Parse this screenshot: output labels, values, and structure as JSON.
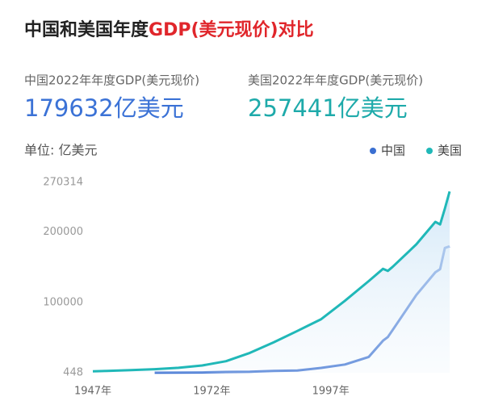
{
  "chart_data": {
    "type": "line",
    "title_parts": [
      {
        "text": "中国和美国年度",
        "color": "#222222"
      },
      {
        "text": "GDP(美元现价)对比",
        "color": "#e0262b"
      }
    ],
    "stats": [
      {
        "label": "中国2022年年度GDP(美元现价)",
        "value": "179632亿美元",
        "color": "#3b72d6"
      },
      {
        "label": "美国2022年年度GDP(美元现价)",
        "value": "257441亿美元",
        "color": "#1eaaaa"
      }
    ],
    "unit_label": "单位: 亿美元",
    "x": [
      1947,
      1950,
      1955,
      1960,
      1965,
      1970,
      1975,
      1980,
      1985,
      1990,
      1995,
      2000,
      2005,
      2008,
      2009,
      2010,
      2015,
      2019,
      2020,
      2021,
      2022
    ],
    "series": [
      {
        "name": "中国",
        "color": "#3a6fd1",
        "values": [
          null,
          null,
          null,
          597,
          704,
          926,
          1630,
          1911,
          3094,
          3609,
          7345,
          12110,
          22860,
          45940,
          51020,
          60870,
          110620,
          142800,
          147230,
          177340,
          179632
        ]
      },
      {
        "name": "美国",
        "color": "#20b8b8",
        "values": [
          2500,
          3000,
          4260,
          5430,
          7440,
          10730,
          16840,
          28570,
          43390,
          59630,
          76400,
          102500,
          130370,
          147690,
          144780,
          150490,
          182380,
          214330,
          210600,
          233150,
          257441
        ]
      }
    ],
    "xlim": [
      1947,
      2022
    ],
    "xticks": [
      {
        "value": 1947,
        "label": "1947年"
      },
      {
        "value": 1972,
        "label": "1972年"
      },
      {
        "value": 1997,
        "label": "1997年"
      }
    ],
    "ylim": [
      448,
      270314
    ],
    "yticks": [
      448,
      100000,
      200000,
      270314
    ],
    "area_under": "美国",
    "legend": "top-right"
  }
}
